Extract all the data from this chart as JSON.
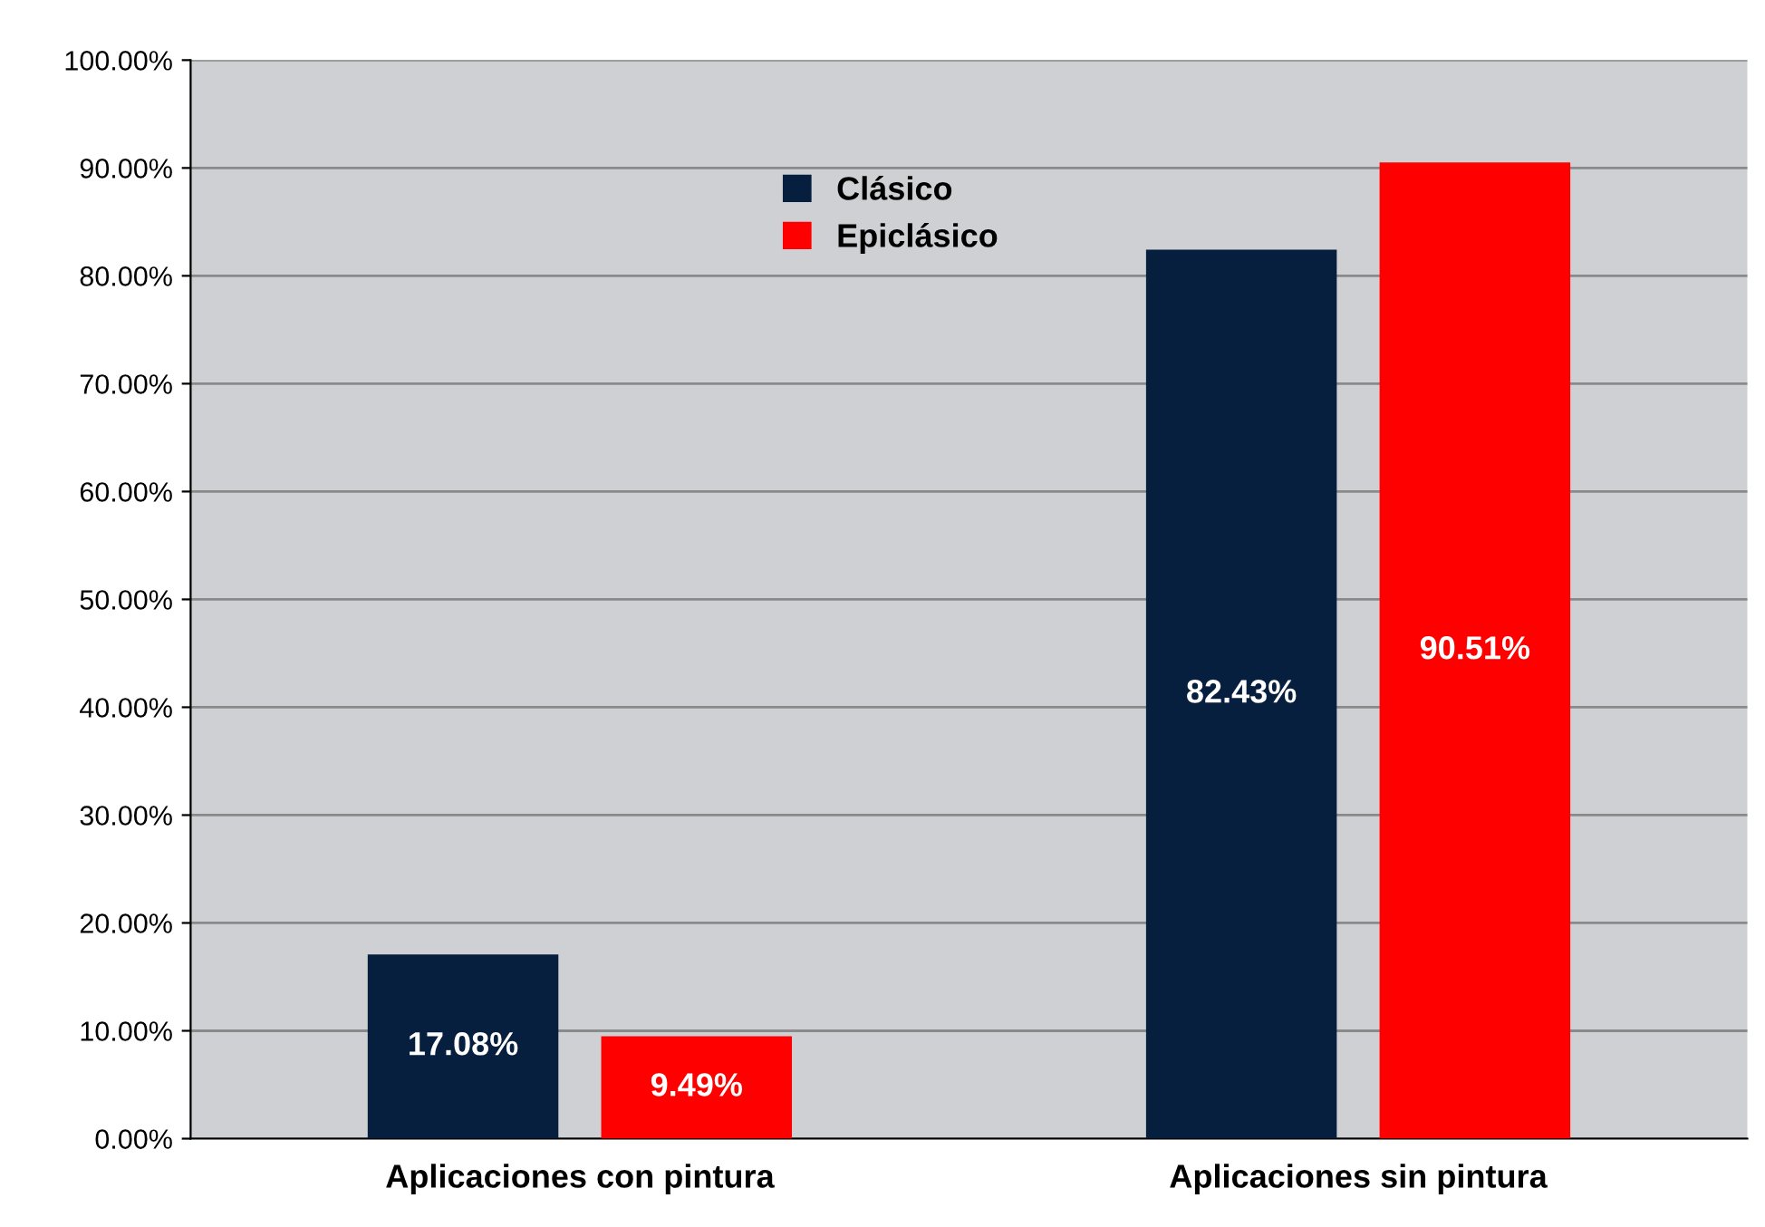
{
  "chart_data": {
    "type": "bar",
    "categories": [
      "Aplicaciones con pintura",
      "Aplicaciones sin pintura"
    ],
    "series": [
      {
        "name": "Clásico",
        "color": "#061f3e",
        "values": [
          17.08,
          82.43
        ],
        "value_labels": [
          "17.08%",
          "82.43%"
        ]
      },
      {
        "name": "Epiclásico",
        "color": "#ff0000",
        "values": [
          9.49,
          90.51
        ],
        "value_labels": [
          "9.49%",
          "90.51%"
        ]
      }
    ],
    "ylim": [
      0,
      100
    ],
    "yticks": [
      {
        "value": 0,
        "label": "0.00%"
      },
      {
        "value": 10,
        "label": "10.00%"
      },
      {
        "value": 20,
        "label": "20.00%"
      },
      {
        "value": 30,
        "label": "30.00%"
      },
      {
        "value": 40,
        "label": "40.00%"
      },
      {
        "value": 50,
        "label": "50.00%"
      },
      {
        "value": 60,
        "label": "60.00%"
      },
      {
        "value": 70,
        "label": "70.00%"
      },
      {
        "value": 80,
        "label": "80.00%"
      },
      {
        "value": 90,
        "label": "90.00%"
      },
      {
        "value": 100,
        "label": "100.00%"
      }
    ],
    "grid": "y",
    "legend": "top"
  }
}
